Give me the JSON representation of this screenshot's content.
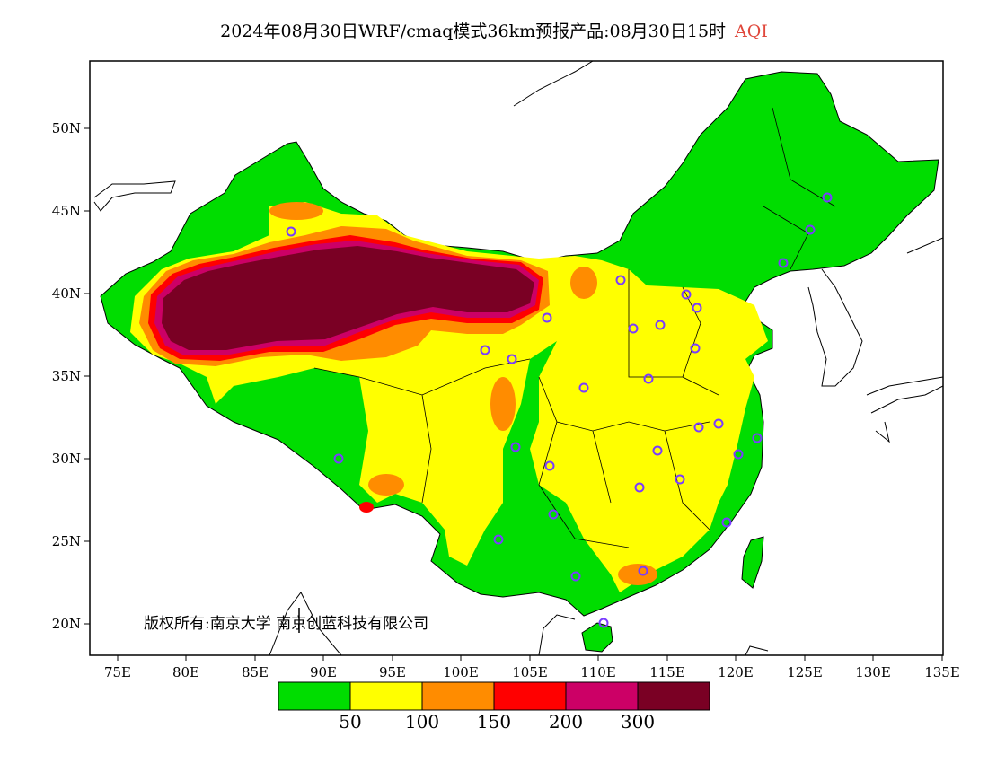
{
  "title": {
    "main": "2024年08月30日WRF/cmaq模式36km预报产品:08月30日15时",
    "variable": "AQI"
  },
  "axes": {
    "lat_labels": [
      "50N",
      "45N",
      "40N",
      "35N",
      "30N",
      "25N",
      "20N"
    ],
    "lon_labels": [
      "75E",
      "80E",
      "85E",
      "90E",
      "95E",
      "100E",
      "105E",
      "110E",
      "115E",
      "120E",
      "125E",
      "130E",
      "135E"
    ]
  },
  "copyright": "版权所有:南京大学  南京创蓝科技有限公司",
  "legend": {
    "colors": [
      "#00dd00",
      "#ffff00",
      "#ff8c00",
      "#ff0000",
      "#cc0066",
      "#7a0024"
    ],
    "labels": [
      "50",
      "100",
      "150",
      "200",
      "300"
    ]
  },
  "colors": {
    "good": "#00dd00",
    "moderate": "#ffff00",
    "sensitive": "#ff8c00",
    "unhealthy": "#ff0000",
    "very_unhealthy": "#cc0066",
    "hazardous": "#7a0024",
    "station_marker": "#7a3cff"
  }
}
